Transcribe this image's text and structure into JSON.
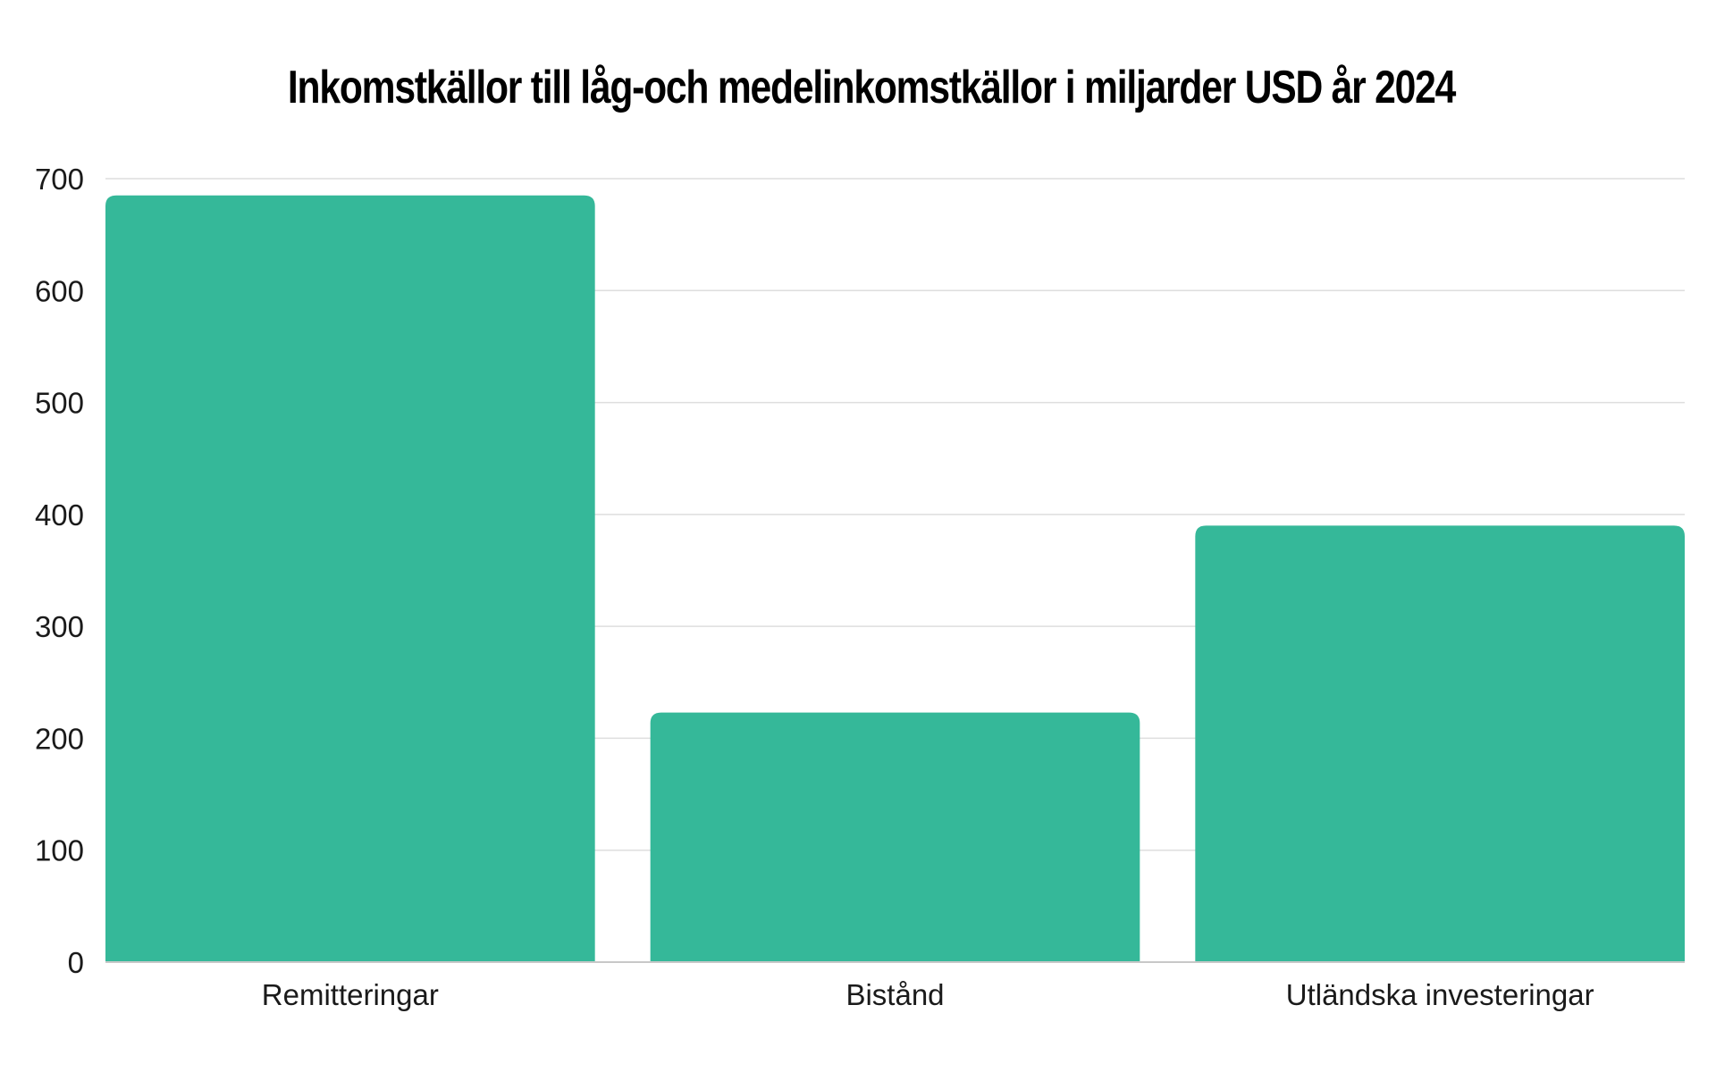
{
  "chart_data": {
    "type": "bar",
    "title": "Inkomstkällor till låg-och medelinkomstkällor i miljarder USD år 2024",
    "categories": [
      "Remitteringar",
      "Bistånd",
      "Utländska investeringar"
    ],
    "values": [
      685,
      223,
      390
    ],
    "ylim": [
      0,
      700
    ],
    "yticks": [
      0,
      100,
      200,
      300,
      400,
      500,
      600,
      700
    ],
    "xlabel": "",
    "ylabel": "",
    "grid": true,
    "bar_color": "#35B899",
    "grid_color": "#dedede",
    "axis_color": "#c8c8c8"
  }
}
